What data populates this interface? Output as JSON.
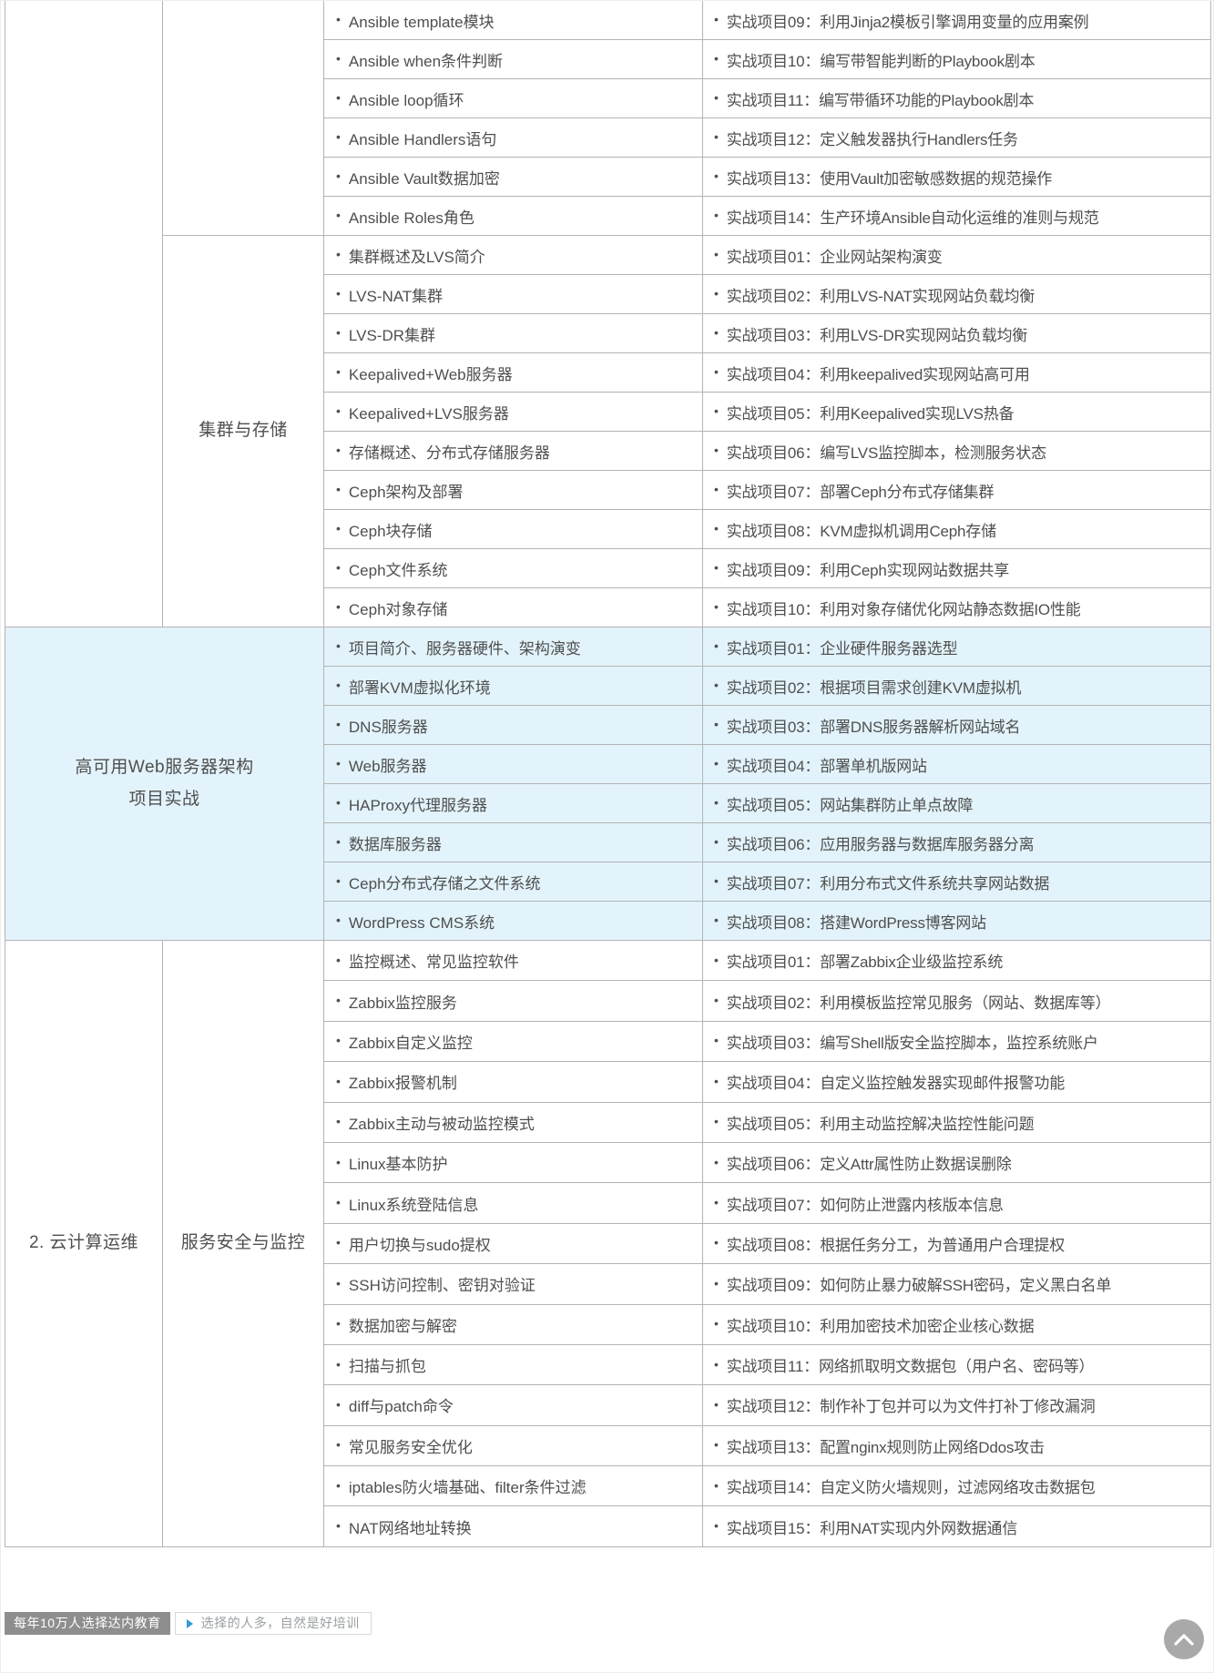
{
  "colors": {
    "highlight_bg": "#e2f3fb",
    "table_border": "#b4b4b4",
    "text": "#4f4f4f",
    "badge_dark_bg": "#8e8e8e",
    "triangle_blue": "#2f9bd6",
    "back_to_top_bg": "#a9a9a9"
  },
  "table": {
    "bullet": "•",
    "sections": [
      {
        "category_label": "",
        "category_open_bottom": true,
        "module_label": "",
        "rows": [
          {
            "topic": "Ansible template模块",
            "project": "实战项目09：利用Jinja2模板引擎调用变量的应用案例"
          },
          {
            "topic": "Ansible when条件判断",
            "project": "实战项目10：编写带智能判断的Playbook剧本"
          },
          {
            "topic": "Ansible loop循环",
            "project": "实战项目11：编写带循环功能的Playbook剧本"
          },
          {
            "topic": "Ansible Handlers语句",
            "project": "实战项目12：定义触发器执行Handlers任务"
          },
          {
            "topic": "Ansible Vault数据加密",
            "project": "实战项目13：使用Vault加密敏感数据的规范操作"
          },
          {
            "topic": "Ansible Roles角色",
            "project": "实战项目14：生产环境Ansible自动化运维的准则与规范"
          }
        ]
      },
      {
        "category_label": "",
        "category_open_bottom": false,
        "module_label": "集群与存储",
        "rows": [
          {
            "topic": "集群概述及LVS简介",
            "project": "实战项目01：企业网站架构演变"
          },
          {
            "topic": "LVS-NAT集群",
            "project": "实战项目02：利用LVS-NAT实现网站负载均衡"
          },
          {
            "topic": "LVS-DR集群",
            "project": "实战项目03：利用LVS-DR实现网站负载均衡"
          },
          {
            "topic": "Keepalived+Web服务器",
            "project": "实战项目04：利用keepalived实现网站高可用"
          },
          {
            "topic": "Keepalived+LVS服务器",
            "project": "实战项目05：利用Keepalived实现LVS热备"
          },
          {
            "topic": "存储概述、分布式存储服务器",
            "project": "实战项目06：编写LVS监控脚本，检测服务状态"
          },
          {
            "topic": "Ceph架构及部署",
            "project": "实战项目07：部署Ceph分布式存储集群"
          },
          {
            "topic": "Ceph块存储",
            "project": "实战项目08：KVM虚拟机调用Ceph存储"
          },
          {
            "topic": "Ceph文件系统",
            "project": "实战项目09：利用Ceph实现网站数据共享"
          },
          {
            "topic": "Ceph对象存储",
            "project": "实战项目10：利用对象存储优化网站静态数据IO性能"
          }
        ]
      },
      {
        "merged_label_lines": [
          "高可用Web服务器架构",
          "项目实战"
        ],
        "highlight": true,
        "rows": [
          {
            "topic": "项目简介、服务器硬件、架构演变",
            "project": "实战项目01：企业硬件服务器选型"
          },
          {
            "topic": "部署KVM虚拟化环境",
            "project": "实战项目02：根据项目需求创建KVM虚拟机"
          },
          {
            "topic": "DNS服务器",
            "project": "实战项目03：部署DNS服务器解析网站域名"
          },
          {
            "topic": "Web服务器",
            "project": "实战项目04：部署单机版网站"
          },
          {
            "topic": "HAProxy代理服务器",
            "project": "实战项目05：网站集群防止单点故障"
          },
          {
            "topic": "数据库服务器",
            "project": "实战项目06：应用服务器与数据库服务器分离"
          },
          {
            "topic": "Ceph分布式存储之文件系统",
            "project": "实战项目07：利用分布式文件系统共享网站数据"
          },
          {
            "topic": "WordPress CMS系统",
            "project": "实战项目08：搭建WordPress博客网站"
          }
        ]
      },
      {
        "category_label": "2. 云计算运维",
        "category_open_bottom": false,
        "module_label": "服务安全与监控",
        "row_height": 44.4,
        "rows": [
          {
            "topic": "监控概述、常见监控软件",
            "project": "实战项目01：部署Zabbix企业级监控系统"
          },
          {
            "topic": "Zabbix监控服务",
            "project": "实战项目02：利用模板监控常见服务（网站、数据库等）"
          },
          {
            "topic": "Zabbix自定义监控",
            "project": "实战项目03：编写Shell版安全监控脚本，监控系统账户"
          },
          {
            "topic": "Zabbix报警机制",
            "project": "实战项目04：自定义监控触发器实现邮件报警功能"
          },
          {
            "topic": "Zabbix主动与被动监控模式",
            "project": "实战项目05：利用主动监控解决监控性能问题"
          },
          {
            "topic": "Linux基本防护",
            "project": "实战项目06：定义Attr属性防止数据误删除"
          },
          {
            "topic": "Linux系统登陆信息",
            "project": "实战项目07：如何防止泄露内核版本信息"
          },
          {
            "topic": "用户切换与sudo提权",
            "project": "实战项目08：根据任务分工，为普通用户合理提权"
          },
          {
            "topic": "SSH访问控制、密钥对验证",
            "project": "实战项目09：如何防止暴力破解SSH密码，定义黑白名单"
          },
          {
            "topic": "数据加密与解密",
            "project": "实战项目10：利用加密技术加密企业核心数据"
          },
          {
            "topic": "扫描与抓包",
            "project": "实战项目11：网络抓取明文数据包（用户名、密码等）"
          },
          {
            "topic": "diff与patch命令",
            "project": "实战项目12：制作补丁包并可以为文件打补丁修改漏洞"
          },
          {
            "topic": "常见服务安全优化",
            "project": "实战项目13：配置nginx规则防止网络Ddos攻击"
          },
          {
            "topic": "iptables防火墙基础、filter条件过滤",
            "project": "实战项目14：自定义防火墙规则，过滤网络攻击数据包"
          },
          {
            "topic": "NAT网络地址转换",
            "project": "实战项目15：利用NAT实现内外网数据通信"
          }
        ]
      }
    ]
  },
  "footer": {
    "badge_dark": "每年10万人选择达内教育",
    "badge_light": "选择的人多，自然是好培训",
    "triangle_icon": "play-right-triangle"
  },
  "back_to_top": {
    "icon": "chevron-up"
  }
}
